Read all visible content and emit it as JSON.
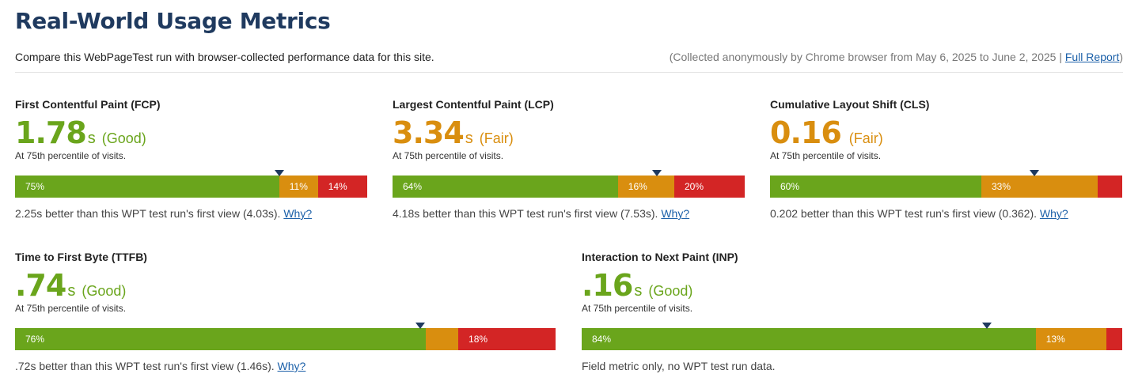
{
  "page": {
    "title": "Real-World Usage Metrics",
    "subtitle": "Compare this WebPageTest run with browser-collected performance data for this site.",
    "collected_text": "(Collected anonymously by Chrome browser from May 6, 2025 to June 2, 2025 |",
    "full_report_label": "Full Report",
    "collected_close": ")"
  },
  "colors": {
    "good": "#6aa51c",
    "fair": "#d98e0f",
    "poor": "#d32525",
    "marker": "#1f3a5f"
  },
  "metrics": [
    {
      "name": "First Contentful Paint (FCP)",
      "value": "1.78",
      "unit": "s",
      "rating": "(Good)",
      "rating_class": "good",
      "percentile": "At 75th percentile of visits.",
      "good_label": "75%",
      "good_pct": 75,
      "fair_label": "11%",
      "fair_pct": 11,
      "poor_label": "14%",
      "poor_pct": 14,
      "marker_pct": 75,
      "compare_text": "2.25s better than this WPT test run's first view (4.03s).",
      "why_label": "Why?"
    },
    {
      "name": "Largest Contentful Paint (LCP)",
      "value": "3.34",
      "unit": "s",
      "rating": "(Fair)",
      "rating_class": "fair",
      "percentile": "At 75th percentile of visits.",
      "good_label": "64%",
      "good_pct": 64,
      "fair_label": "16%",
      "fair_pct": 16,
      "poor_label": "20%",
      "poor_pct": 20,
      "marker_pct": 75,
      "compare_text": "4.18s better than this WPT test run's first view (7.53s).",
      "why_label": "Why?"
    },
    {
      "name": "Cumulative Layout Shift (CLS)",
      "value": "0.16",
      "unit": "",
      "rating": "(Fair)",
      "rating_class": "fair",
      "percentile": "At 75th percentile of visits.",
      "good_label": "60%",
      "good_pct": 60,
      "fair_label": "33%",
      "fair_pct": 33,
      "poor_label": "",
      "poor_pct": 7,
      "marker_pct": 75,
      "compare_text": "0.202 better than this WPT test run's first view (0.362).",
      "why_label": "Why?"
    },
    {
      "name": "Time to First Byte (TTFB)",
      "value": ".74",
      "unit": "s",
      "rating": "(Good)",
      "rating_class": "good",
      "percentile": "At 75th percentile of visits.",
      "good_label": "76%",
      "good_pct": 76,
      "fair_label": "",
      "fair_pct": 6,
      "poor_label": "18%",
      "poor_pct": 18,
      "marker_pct": 75,
      "compare_text": ".72s better than this WPT test run's first view (1.46s).",
      "why_label": "Why?"
    },
    {
      "name": "Interaction to Next Paint (INP)",
      "value": ".16",
      "unit": "s",
      "rating": "(Good)",
      "rating_class": "good",
      "percentile": "At 75th percentile of visits.",
      "good_label": "84%",
      "good_pct": 84,
      "fair_label": "13%",
      "fair_pct": 13,
      "poor_label": "",
      "poor_pct": 3,
      "marker_pct": 75,
      "compare_text": "Field metric only, no WPT test run data.",
      "why_label": ""
    }
  ]
}
